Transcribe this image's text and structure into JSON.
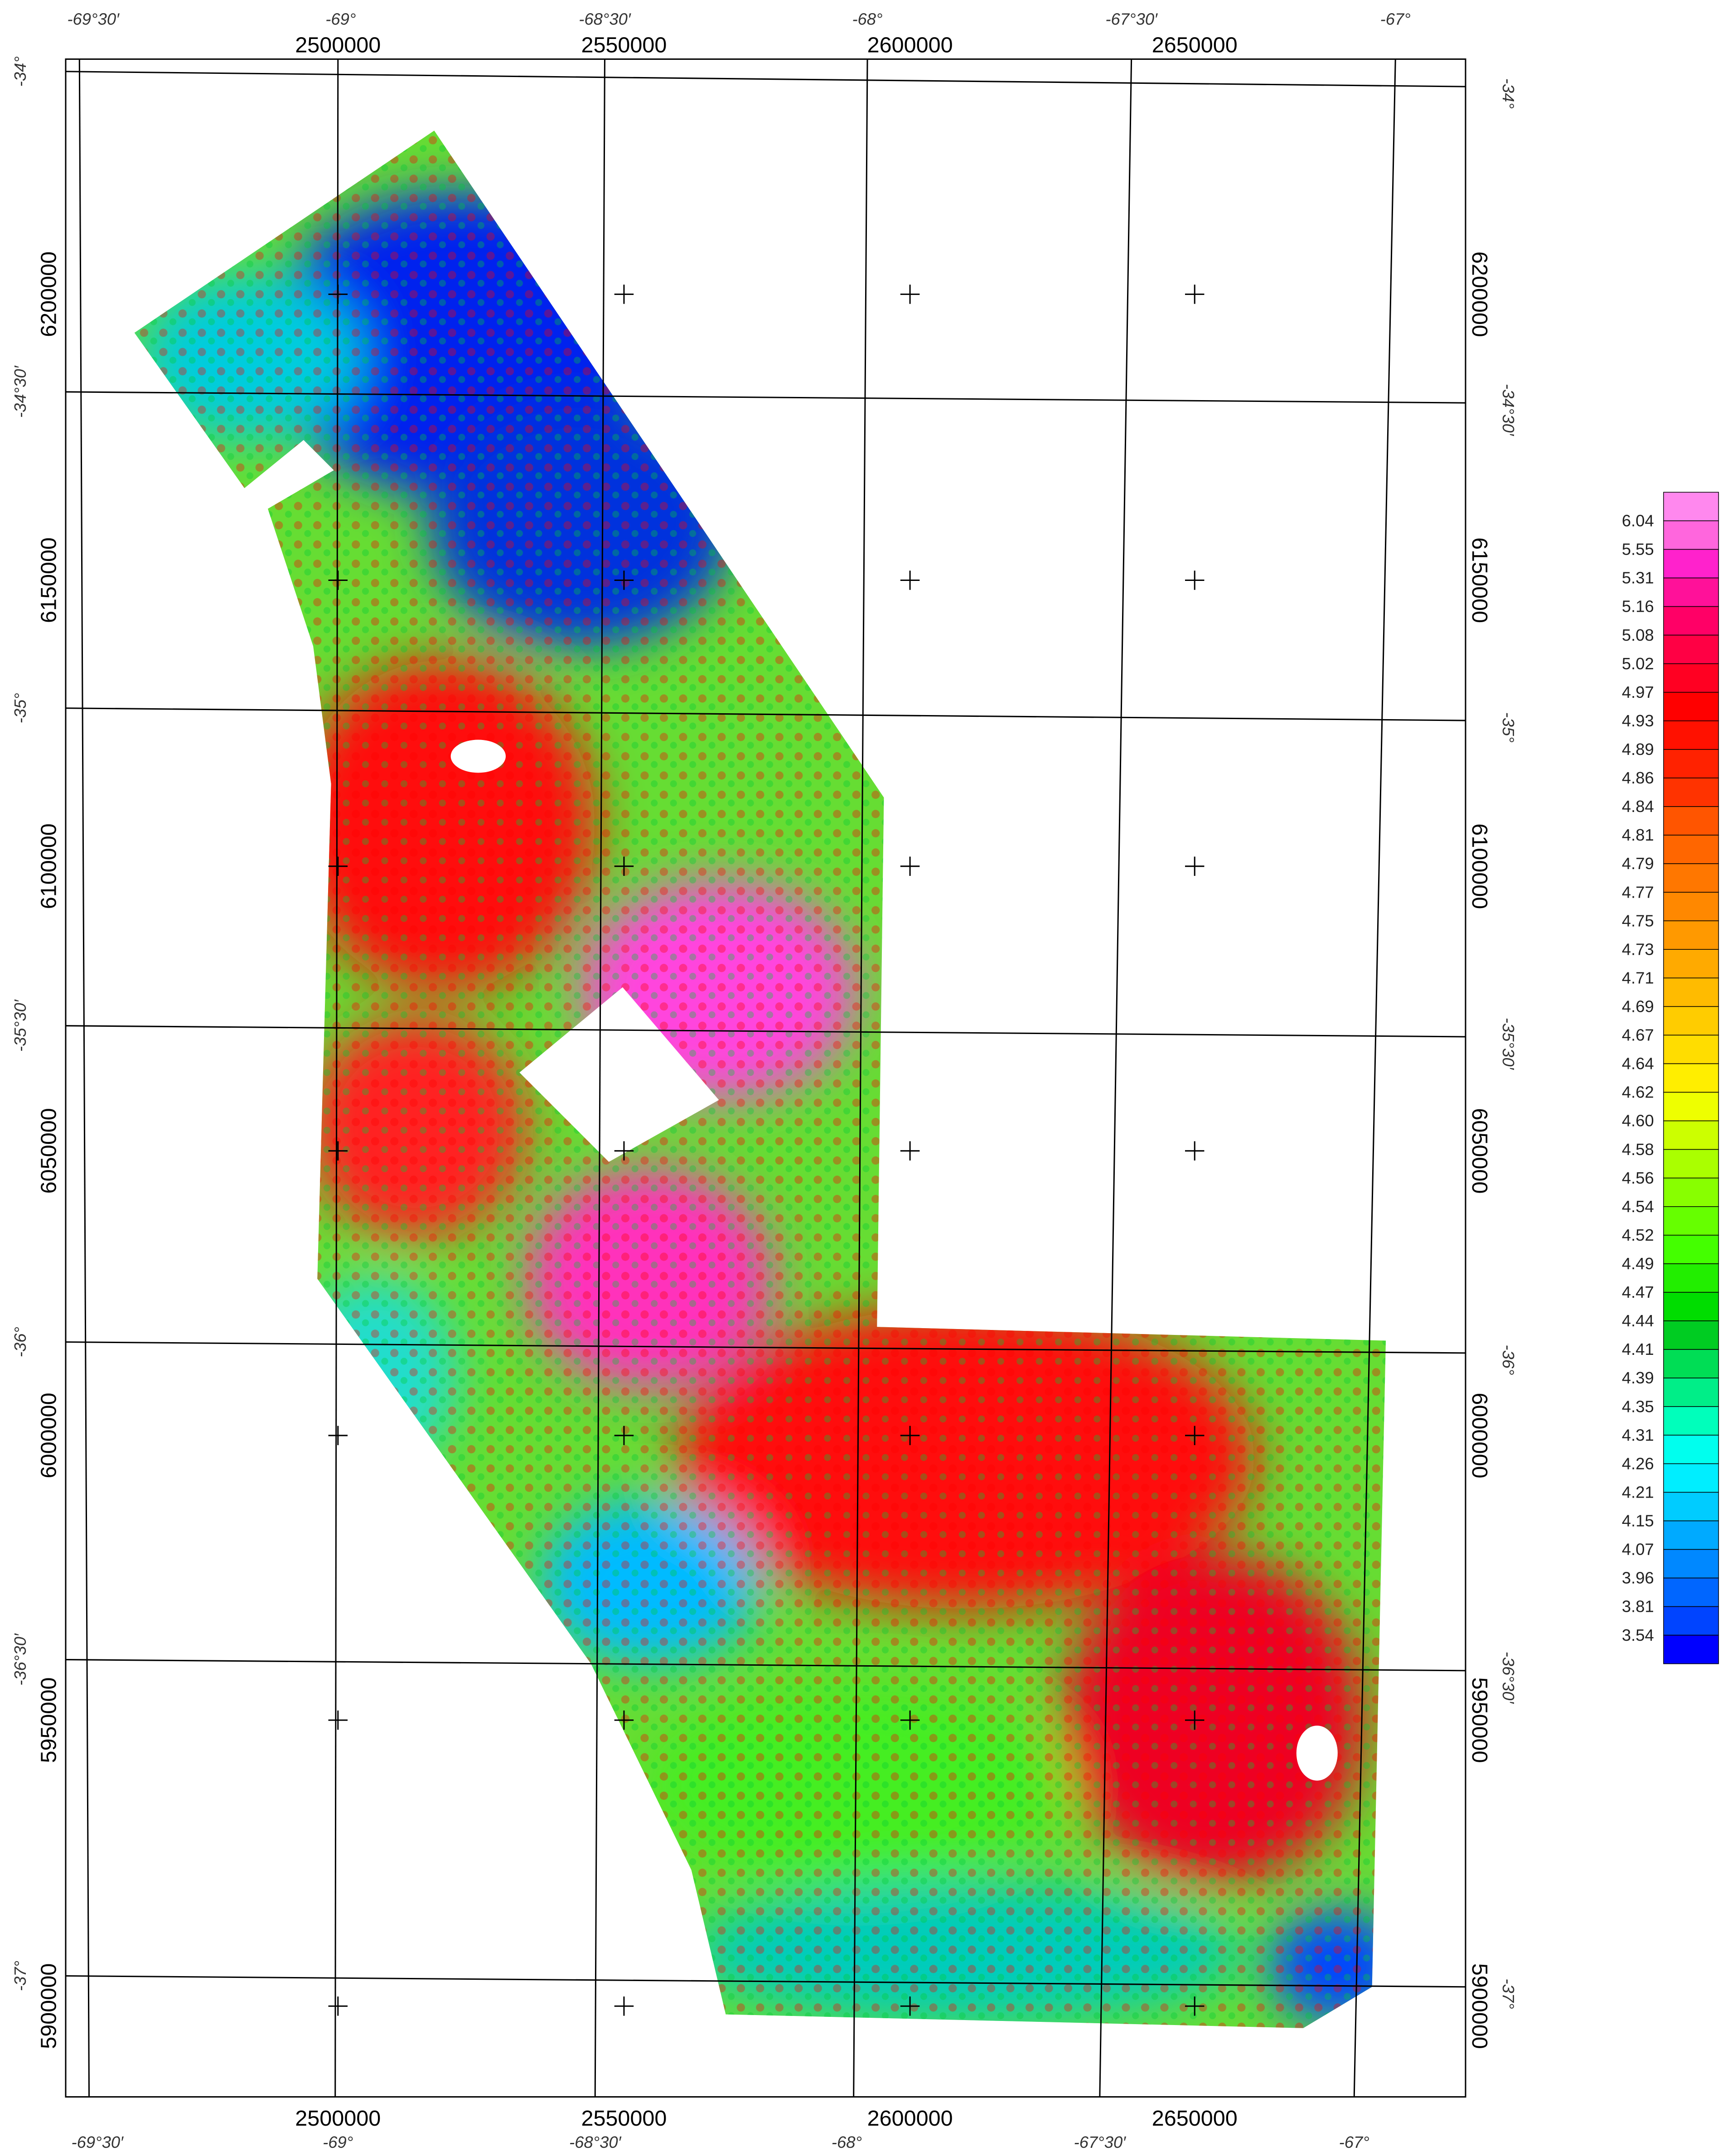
{
  "map": {
    "top_longitudes": [
      "-69°30′",
      "-69°",
      "-68°30′",
      "-68°",
      "-67°30′",
      "-67°"
    ],
    "bottom_longitudes": [
      "-69°30′",
      "-69°",
      "-68°30′",
      "-68°",
      "-67°30′",
      "-67°"
    ],
    "left_latitudes": [
      "-34°",
      "-34°30′",
      "-35°",
      "-35°30′",
      "-36°",
      "-36°30′",
      "-37°"
    ],
    "right_latitudes": [
      "-34°",
      "-34°30′",
      "-35°",
      "-35°30′",
      "-36°",
      "-36°30′",
      "-37°"
    ],
    "top_eastings": [
      "2500000",
      "2550000",
      "2600000",
      "2650000"
    ],
    "bottom_eastings": [
      "2500000",
      "2550000",
      "2600000",
      "2650000"
    ],
    "left_northings": [
      "6200000",
      "6150000",
      "6100000",
      "6050000",
      "6000000",
      "5950000",
      "5900000"
    ],
    "right_northings": [
      "6200000",
      "6150000",
      "6100000",
      "6050000",
      "6000000",
      "5950000",
      "5900000"
    ]
  },
  "legend": {
    "labels": [
      "6.04",
      "5.55",
      "5.31",
      "5.16",
      "5.08",
      "5.02",
      "4.97",
      "4.93",
      "4.89",
      "4.86",
      "4.84",
      "4.81",
      "4.79",
      "4.77",
      "4.75",
      "4.73",
      "4.71",
      "4.69",
      "4.67",
      "4.64",
      "4.62",
      "4.60",
      "4.58",
      "4.56",
      "4.54",
      "4.52",
      "4.49",
      "4.47",
      "4.44",
      "4.41",
      "4.39",
      "4.35",
      "4.31",
      "4.26",
      "4.21",
      "4.15",
      "4.07",
      "3.96",
      "3.81",
      "3.54"
    ],
    "colors": [
      "#ff88ee",
      "#ff66dd",
      "#ff22cc",
      "#ff1199",
      "#ff0066",
      "#ff0044",
      "#ff0022",
      "#ff0000",
      "#ff1100",
      "#ff2200",
      "#ff3300",
      "#ff5500",
      "#ff6600",
      "#ff7700",
      "#ff8800",
      "#ff9900",
      "#ffaa00",
      "#ffbb00",
      "#ffcc00",
      "#ffdd00",
      "#ffee00",
      "#eeff00",
      "#ccff00",
      "#aaff00",
      "#88ff00",
      "#66ff00",
      "#44ff00",
      "#22ee00",
      "#00dd00",
      "#00cc22",
      "#00dd55",
      "#00ee88",
      "#00ffbb",
      "#00ffee",
      "#00eeff",
      "#00ccff",
      "#00aaff",
      "#0088ff",
      "#0066ff",
      "#0044ff",
      "#0000ff"
    ]
  }
}
